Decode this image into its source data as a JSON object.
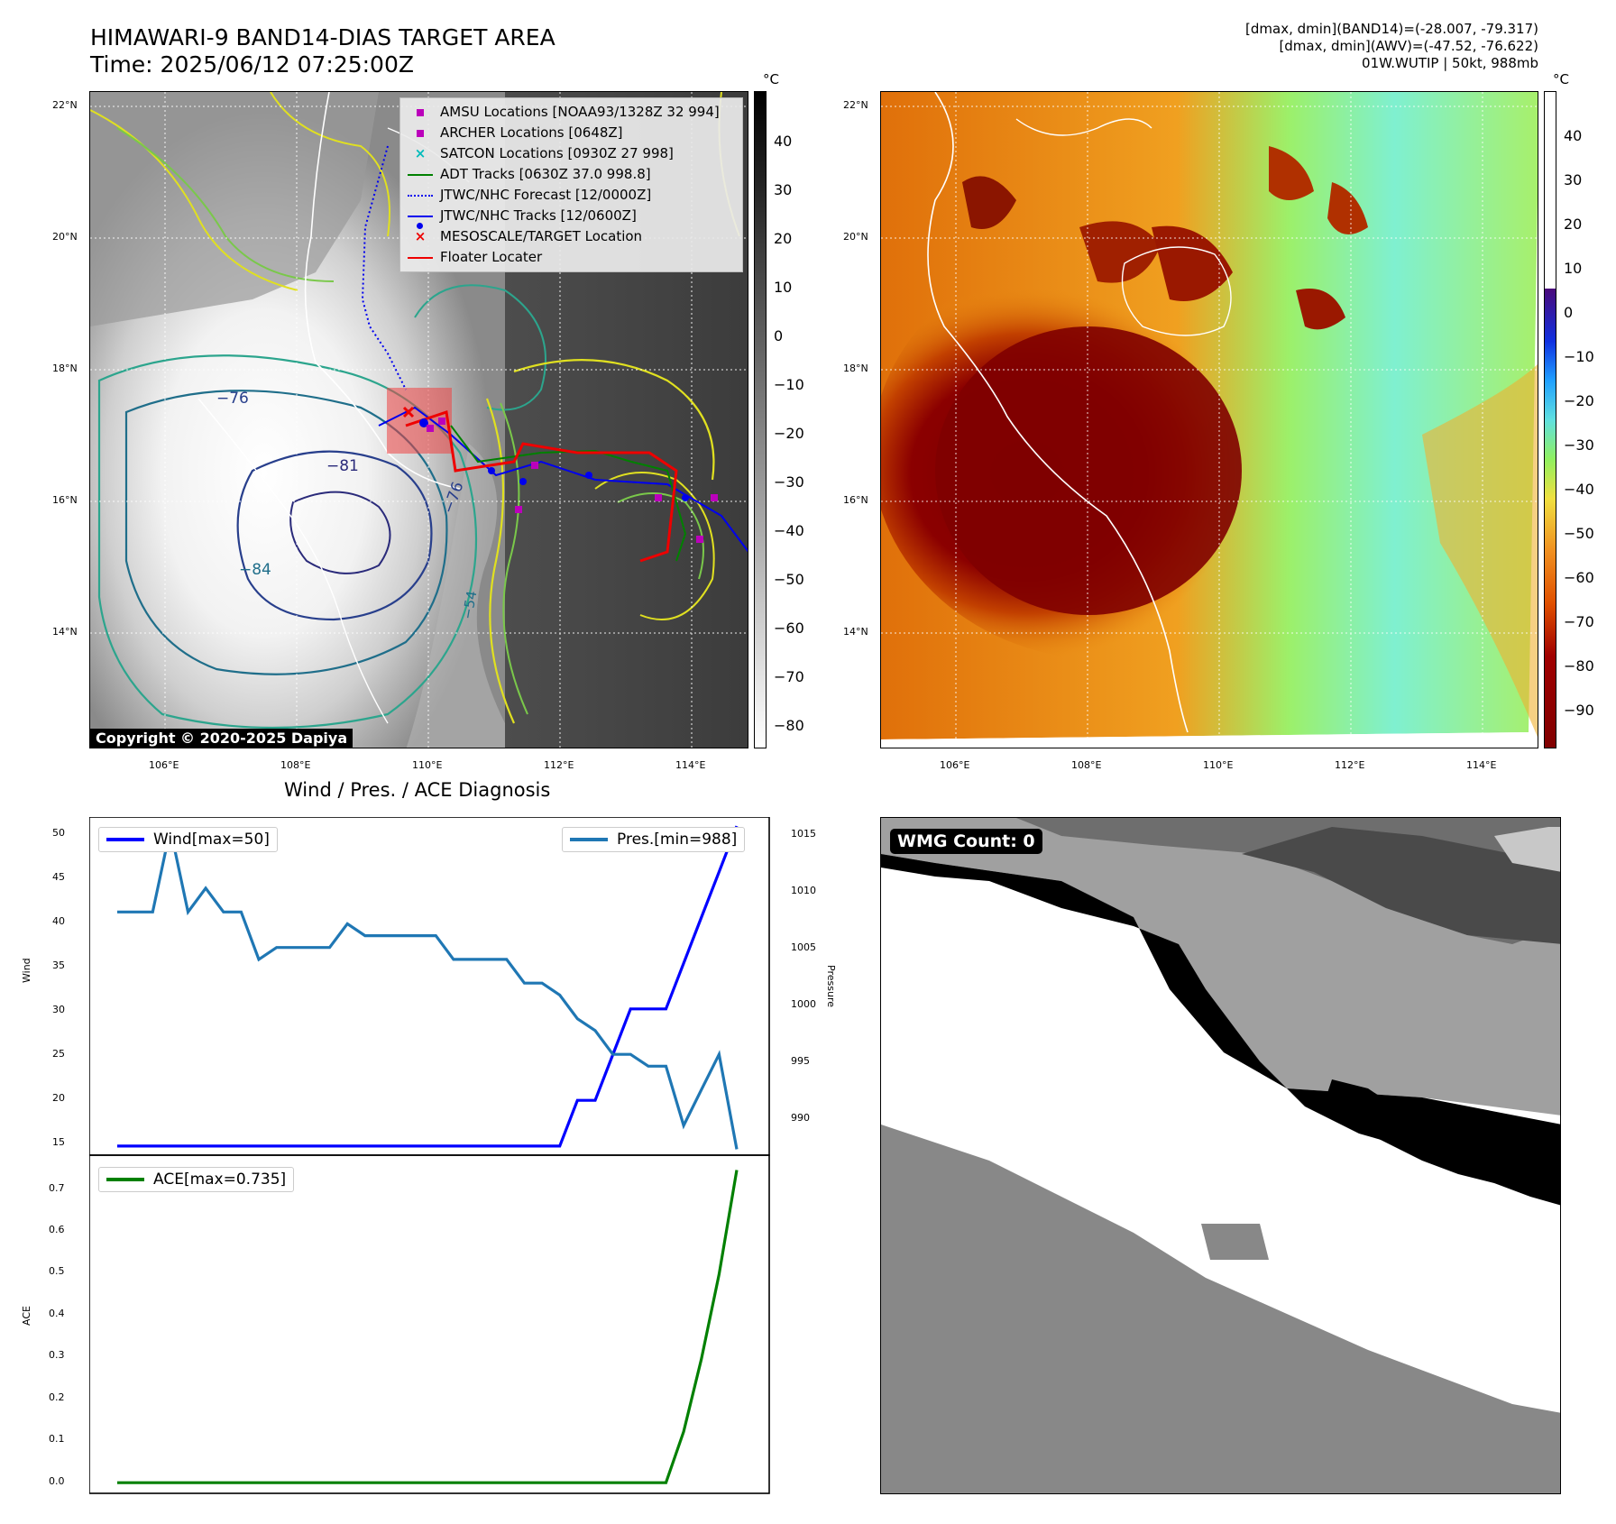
{
  "header": {
    "title_line1": "HIMAWARI-9 BAND14-DIAS TARGET AREA",
    "title_line2": "Time: 2025/06/12 07:25:00Z",
    "info_line1": "[dmax, dmin](BAND14)=(-28.007, -79.317)",
    "info_line2": "[dmax, dmin](AWV)=(-47.52, -76.622)",
    "info_line3": "01W.WUTIP | 50kt, 988mb"
  },
  "map_axes": {
    "lon_ticks": [
      "106°E",
      "108°E",
      "110°E",
      "112°E",
      "114°E"
    ],
    "lat_ticks": [
      "22°N",
      "20°N",
      "18°N",
      "16°N",
      "14°N"
    ]
  },
  "left_map": {
    "colorbar_unit": "°C",
    "colorbar_ticks": [
      "40",
      "30",
      "20",
      "10",
      "0",
      "−10",
      "−20",
      "−30",
      "−40",
      "−50",
      "−60",
      "−70",
      "−80"
    ],
    "contour_labels": [
      "−76",
      "−81",
      "−76",
      "−84",
      "−54"
    ],
    "copyright": "Copyright © 2020-2025 Dapiya",
    "legend": [
      {
        "label": "AMSU Locations [NOAA93/1328Z 32 994]",
        "symbol": "square",
        "color": "#bb00bb"
      },
      {
        "label": "ARCHER Locations [0648Z]",
        "symbol": "square",
        "color": "#bb00bb"
      },
      {
        "label": "SATCON Locations [0930Z 27 998]",
        "symbol": "x",
        "color": "#00bbbb"
      },
      {
        "label": "ADT Tracks [0630Z 37.0 998.8]",
        "symbol": "line",
        "color": "#008000"
      },
      {
        "label": "JTWC/NHC Forecast [12/0000Z]",
        "symbol": "dotted",
        "color": "#0000ee"
      },
      {
        "label": "JTWC/NHC Tracks [12/0600Z]",
        "symbol": "linedot",
        "color": "#0000ee"
      },
      {
        "label": "MESOSCALE/TARGET Location",
        "symbol": "x",
        "color": "#ee0000"
      },
      {
        "label": "Floater Locater",
        "symbol": "line",
        "color": "#ee0000"
      }
    ]
  },
  "right_map": {
    "colorbar_unit": "°C",
    "colorbar_ticks": [
      "40",
      "30",
      "20",
      "10",
      "0",
      "−10",
      "−20",
      "−30",
      "−40",
      "−50",
      "−60",
      "−70",
      "−80",
      "−90"
    ]
  },
  "diagnosis": {
    "title": "Wind / Pres. / ACE Diagnosis",
    "wind_ylabel": "Wind",
    "pres_ylabel": "Pressure",
    "ace_ylabel": "ACE",
    "wind_legend": "Wind[max=50]",
    "pres_legend": "Pres.[min=988]",
    "ace_legend": "ACE[max=0.735]",
    "wind_ticks": [
      "50",
      "45",
      "40",
      "35",
      "30",
      "25",
      "20",
      "15"
    ],
    "pres_ticks": [
      "1015",
      "1010",
      "1005",
      "1000",
      "995",
      "990"
    ],
    "ace_ticks": [
      "0.7",
      "0.6",
      "0.5",
      "0.4",
      "0.3",
      "0.2",
      "0.1",
      "0.0"
    ],
    "colors": {
      "wind": "#0000ff",
      "pressure": "#1f77b4",
      "ace": "#008000"
    }
  },
  "wmg": {
    "count_label": "WMG Count: 0"
  },
  "chart_data": [
    {
      "type": "line",
      "title": "Wind / Pres. / ACE Diagnosis",
      "ylabel": "Wind",
      "ylim": [
        14,
        51
      ],
      "series": [
        {
          "name": "Wind[max=50]",
          "axis": "left",
          "values": [
            15,
            15,
            15,
            15,
            15,
            15,
            15,
            15,
            15,
            15,
            15,
            15,
            15,
            15,
            15,
            15,
            15,
            15,
            15,
            15,
            15,
            15,
            15,
            15,
            15,
            15,
            20,
            20,
            25,
            30,
            30,
            30,
            35,
            40,
            45,
            50
          ]
        },
        {
          "name": "Pres.[min=988]",
          "axis": "right",
          "ylabel": "Pressure",
          "ylim": [
            987.5,
            1016
          ],
          "values": [
            1008,
            1008,
            1008,
            1015,
            1008,
            1010,
            1008,
            1008,
            1004,
            1005,
            1005,
            1005,
            1005,
            1007,
            1006,
            1006,
            1006,
            1006,
            1006,
            1004,
            1004,
            1004,
            1004,
            1002,
            1002,
            1001,
            999,
            998,
            996,
            996,
            995,
            995,
            990,
            993,
            996,
            988
          ]
        }
      ]
    },
    {
      "type": "line",
      "ylabel": "ACE",
      "ylim": [
        -0.025,
        0.77
      ],
      "series": [
        {
          "name": "ACE[max=0.735]",
          "values": [
            0,
            0,
            0,
            0,
            0,
            0,
            0,
            0,
            0,
            0,
            0,
            0,
            0,
            0,
            0,
            0,
            0,
            0,
            0,
            0,
            0,
            0,
            0,
            0,
            0,
            0,
            0,
            0,
            0,
            0,
            0,
            0,
            0.12,
            0.29,
            0.49,
            0.735
          ]
        }
      ]
    }
  ]
}
